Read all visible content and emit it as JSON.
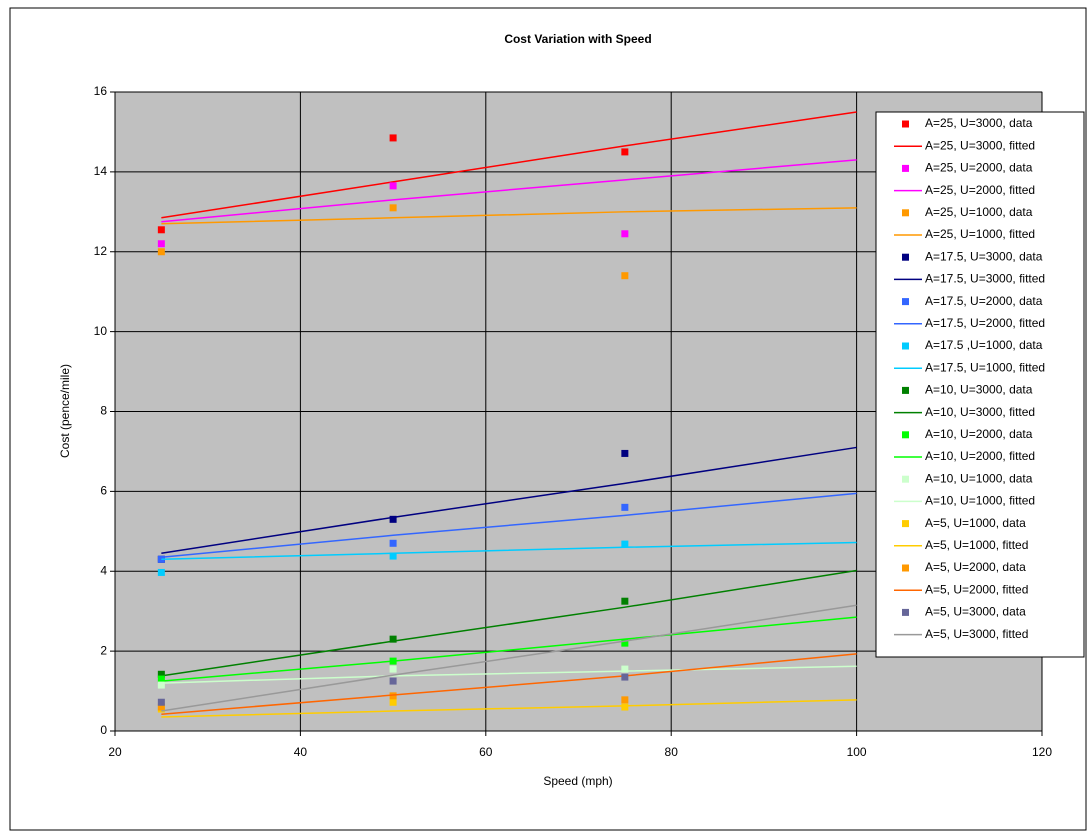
{
  "chart_data": {
    "type": "scatter",
    "title": "Cost Variation with Speed",
    "x_label": "Speed (mph)",
    "y_label": "Cost (pence/mile)",
    "xlim": [
      20,
      120
    ],
    "xticks": [
      20,
      40,
      60,
      80,
      100,
      120
    ],
    "ylim": [
      0,
      16
    ],
    "yticks": [
      0,
      2,
      4,
      6,
      8,
      10,
      12,
      14,
      16
    ],
    "grid": true,
    "legend": "right",
    "series": [
      {
        "name": "A=25, U=3000, data",
        "type": "scatter",
        "color": "#ff0000",
        "x": [
          25,
          50,
          75
        ],
        "values": [
          12.55,
          14.85,
          14.5
        ]
      },
      {
        "name": "A=25, U=3000, fitted",
        "type": "line",
        "color": "#ff0000",
        "x": [
          25,
          50,
          75,
          100
        ],
        "values": [
          12.85,
          13.75,
          14.65,
          15.5
        ]
      },
      {
        "name": "A=25, U=2000, data",
        "type": "scatter",
        "color": "#ff00ff",
        "x": [
          25,
          50,
          75
        ],
        "values": [
          12.2,
          13.65,
          12.45
        ]
      },
      {
        "name": "A=25, U=2000, fitted",
        "type": "line",
        "color": "#ff00ff",
        "x": [
          25,
          50,
          75,
          100
        ],
        "values": [
          12.75,
          13.3,
          13.8,
          14.3
        ]
      },
      {
        "name": "A=25, U=1000, data",
        "type": "scatter",
        "color": "#ff9900",
        "x": [
          25,
          50,
          75
        ],
        "values": [
          12.0,
          13.1,
          11.4
        ]
      },
      {
        "name": "A=25, U=1000, fitted",
        "type": "line",
        "color": "#ff9900",
        "x": [
          25,
          50,
          75,
          100
        ],
        "values": [
          12.7,
          12.85,
          13.0,
          13.1
        ]
      },
      {
        "name": "A=17.5, U=3000, data",
        "type": "scatter",
        "color": "#000080",
        "x": [
          25,
          50,
          75
        ],
        "values": [
          4.3,
          5.3,
          6.95
        ]
      },
      {
        "name": "A=17.5, U=3000, fitted",
        "type": "line",
        "color": "#000080",
        "x": [
          25,
          50,
          75,
          100
        ],
        "values": [
          4.45,
          5.35,
          6.2,
          7.1
        ]
      },
      {
        "name": "A=17.5, U=2000, data",
        "type": "scatter",
        "color": "#3366ff",
        "x": [
          25,
          50,
          75
        ],
        "values": [
          4.3,
          4.7,
          5.6
        ]
      },
      {
        "name": "A=17.5, U=2000, fitted",
        "type": "line",
        "color": "#3366ff",
        "x": [
          25,
          50,
          75,
          100
        ],
        "values": [
          4.35,
          4.9,
          5.4,
          5.95
        ]
      },
      {
        "name": "A=17.5 ,U=1000, data",
        "type": "scatter",
        "color": "#00ccff",
        "x": [
          25,
          50,
          75
        ],
        "values": [
          3.97,
          4.38,
          4.68
        ]
      },
      {
        "name": "A=17.5, U=1000, fitted",
        "type": "line",
        "color": "#00ccff",
        "x": [
          25,
          50,
          75,
          100
        ],
        "values": [
          4.3,
          4.45,
          4.6,
          4.72
        ]
      },
      {
        "name": "A=10, U=3000, data",
        "type": "scatter",
        "color": "#008000",
        "x": [
          25,
          50,
          75
        ],
        "values": [
          1.42,
          2.3,
          3.25
        ]
      },
      {
        "name": "A=10, U=3000, fitted",
        "type": "line",
        "color": "#008000",
        "x": [
          25,
          50,
          75,
          100
        ],
        "values": [
          1.38,
          2.25,
          3.1,
          4.02
        ]
      },
      {
        "name": "A=10, U=2000, data",
        "type": "scatter",
        "color": "#00ff00",
        "x": [
          25,
          50,
          75
        ],
        "values": [
          1.3,
          1.75,
          2.2
        ]
      },
      {
        "name": "A=10, U=2000, fitted",
        "type": "line",
        "color": "#00ff00",
        "x": [
          25,
          50,
          75,
          100
        ],
        "values": [
          1.25,
          1.75,
          2.3,
          2.85
        ]
      },
      {
        "name": "A=10, U=1000, data",
        "type": "scatter",
        "color": "#ccffcc",
        "x": [
          25,
          50,
          75
        ],
        "values": [
          1.15,
          1.55,
          1.55
        ]
      },
      {
        "name": "A=10, U=1000, fitted",
        "type": "line",
        "color": "#ccffcc",
        "x": [
          25,
          50,
          75,
          100
        ],
        "values": [
          1.2,
          1.38,
          1.5,
          1.62
        ]
      },
      {
        "name": "A=5, U=1000, data",
        "type": "scatter",
        "color": "#ffcc00",
        "x": [
          25,
          50,
          75
        ],
        "values": [
          0.55,
          0.72,
          0.6
        ]
      },
      {
        "name": "A=5, U=1000, fitted",
        "type": "line",
        "color": "#ffcc00",
        "x": [
          25,
          50,
          75,
          100
        ],
        "values": [
          0.35,
          0.5,
          0.63,
          0.78
        ]
      },
      {
        "name": "A=5, U=2000, data",
        "type": "scatter",
        "color": "#ff9900",
        "x": [
          25,
          50,
          75
        ],
        "values": [
          0.6,
          0.88,
          0.78
        ]
      },
      {
        "name": "A=5, U=2000, fitted",
        "type": "line",
        "color": "#ff6600",
        "x": [
          25,
          50,
          75,
          100
        ],
        "values": [
          0.42,
          0.9,
          1.38,
          1.93
        ]
      },
      {
        "name": "A=5, U=3000, data",
        "type": "scatter",
        "color": "#666699",
        "x": [
          25,
          50,
          75
        ],
        "values": [
          0.72,
          1.25,
          1.35
        ]
      },
      {
        "name": "A=5, U=3000, fitted",
        "type": "line",
        "color": "#999999",
        "x": [
          25,
          50,
          75,
          100
        ],
        "values": [
          0.5,
          1.4,
          2.25,
          3.15
        ]
      }
    ]
  }
}
